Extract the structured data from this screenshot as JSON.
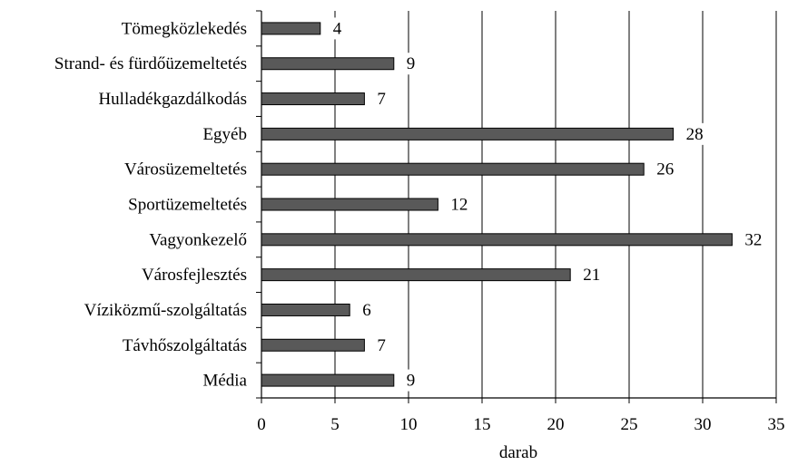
{
  "chart_data": {
    "type": "bar",
    "orientation": "horizontal",
    "title": "",
    "xlabel": "darab",
    "ylabel": "",
    "xlim": [
      0,
      35
    ],
    "x_ticks": [
      0,
      5,
      10,
      15,
      20,
      25,
      30,
      35
    ],
    "grid": "vertical major gridlines",
    "legend": "none",
    "categories": [
      "Tömegközlekedés",
      "Strand- és fürdőüzemeltetés",
      "Hulladékgazdálkodás",
      "Egyéb",
      "Városüzemeltetés",
      "Sportüzemeltetés",
      "Vagyonkezelő",
      "Városfejlesztés",
      "Víziközmű-szolgáltatás",
      "Távhőszolgáltatás",
      "Média"
    ],
    "values": [
      4,
      9,
      7,
      28,
      26,
      12,
      32,
      21,
      6,
      7,
      9
    ],
    "bar_color": "#595959"
  }
}
